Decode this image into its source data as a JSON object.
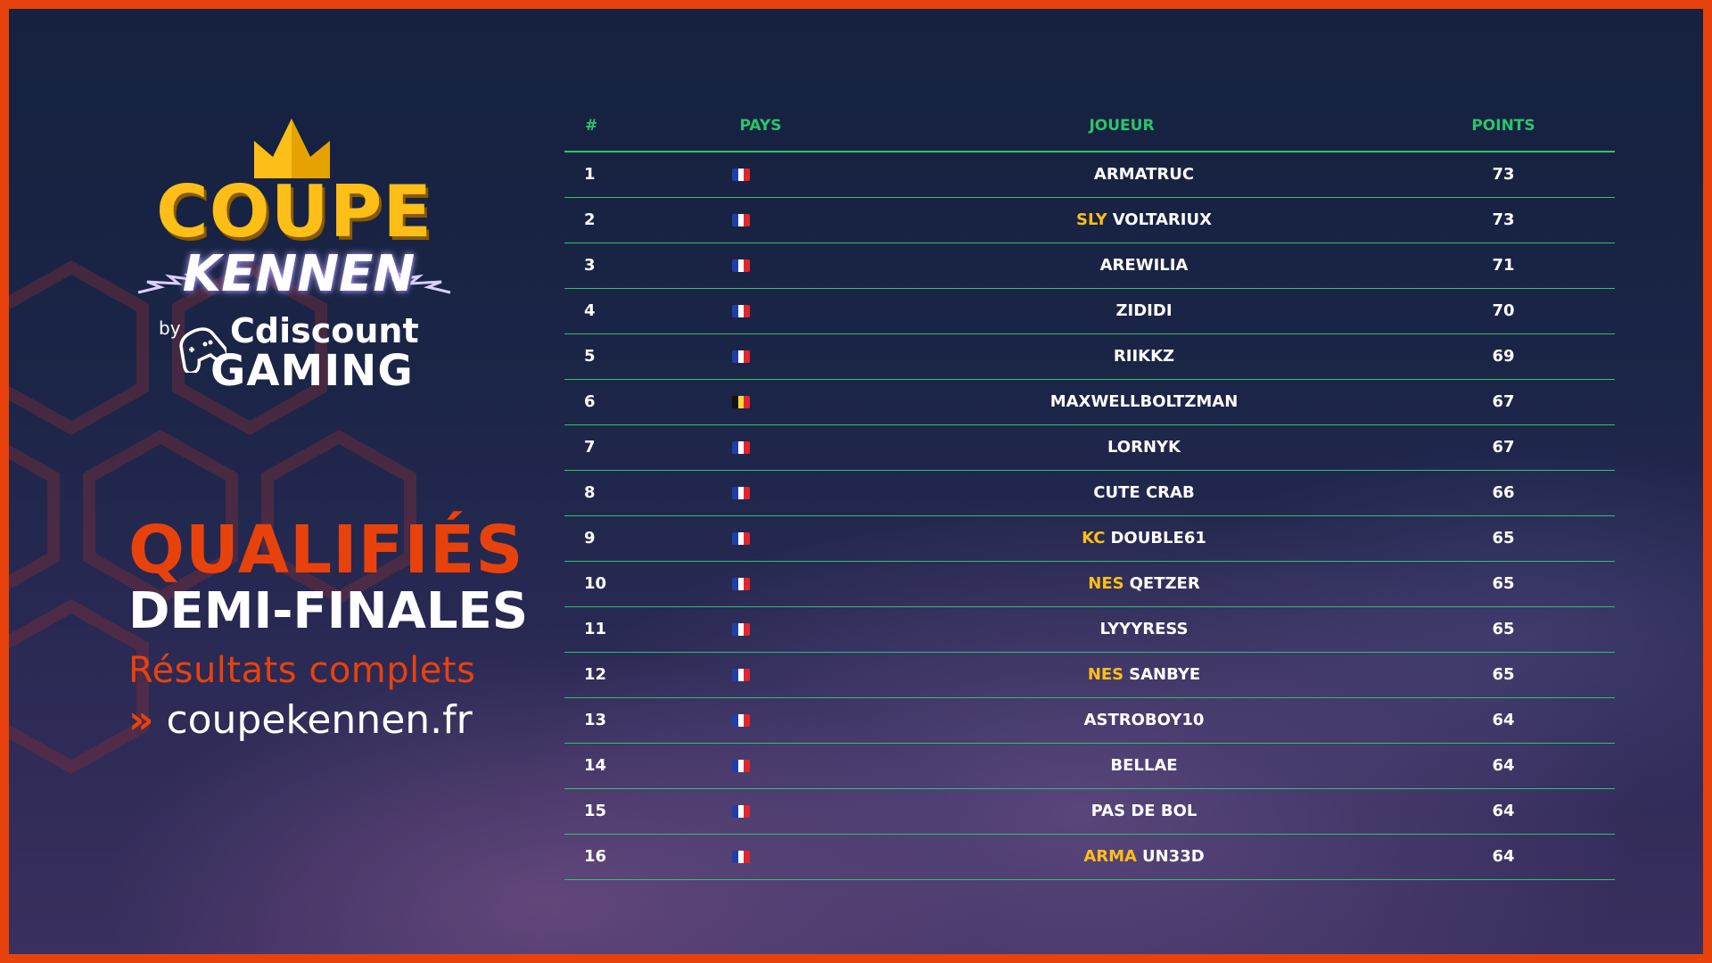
{
  "brand": {
    "title_line1": "COUPE",
    "title_line2": "KENNEN",
    "by": "by",
    "sponsor_line1": "Cdiscount",
    "sponsor_line2": "GAMING"
  },
  "headline": {
    "line1": "QUALIFIÉS",
    "line2": "DEMI-FINALES",
    "line3": "Résultats complets",
    "arrows": "»",
    "website": "coupekennen.fr"
  },
  "colors": {
    "accent_orange": "#e8420c",
    "accent_gold": "#fdbf17",
    "table_green": "#2bc46a"
  },
  "table": {
    "headers": {
      "rank": "#",
      "country": "PAYS",
      "player": "JOUEUR",
      "points": "POINTS"
    },
    "rows": [
      {
        "rank": "1",
        "country": "france",
        "team": "",
        "name": "ARMATRUC",
        "points": "73"
      },
      {
        "rank": "2",
        "country": "france",
        "team": "SLY",
        "name": "VOLTARIUX",
        "points": "73"
      },
      {
        "rank": "3",
        "country": "france",
        "team": "",
        "name": "AREWILIA",
        "points": "71"
      },
      {
        "rank": "4",
        "country": "france",
        "team": "",
        "name": "ZIDIDI",
        "points": "70"
      },
      {
        "rank": "5",
        "country": "france",
        "team": "",
        "name": "RIIKKZ",
        "points": "69"
      },
      {
        "rank": "6",
        "country": "belgium",
        "team": "",
        "name": "MAXWELLBOLTZMAN",
        "points": "67"
      },
      {
        "rank": "7",
        "country": "france",
        "team": "",
        "name": "LORNYK",
        "points": "67"
      },
      {
        "rank": "8",
        "country": "france",
        "team": "",
        "name": "CUTE CRAB",
        "points": "66"
      },
      {
        "rank": "9",
        "country": "france",
        "team": "KC",
        "name": "DOUBLE61",
        "points": "65"
      },
      {
        "rank": "10",
        "country": "france",
        "team": "NES",
        "name": "QETZER",
        "points": "65"
      },
      {
        "rank": "11",
        "country": "france",
        "team": "",
        "name": "LYYYRESS",
        "points": "65"
      },
      {
        "rank": "12",
        "country": "france",
        "team": "NES",
        "name": "SANBYE",
        "points": "65"
      },
      {
        "rank": "13",
        "country": "france",
        "team": "",
        "name": "ASTROBOY10",
        "points": "64"
      },
      {
        "rank": "14",
        "country": "france",
        "team": "",
        "name": "BELLAE",
        "points": "64"
      },
      {
        "rank": "15",
        "country": "france",
        "team": "",
        "name": "PAS DE BOL",
        "points": "64"
      },
      {
        "rank": "16",
        "country": "france",
        "team": "ARMA",
        "name": "UN33D",
        "points": "64"
      }
    ]
  }
}
